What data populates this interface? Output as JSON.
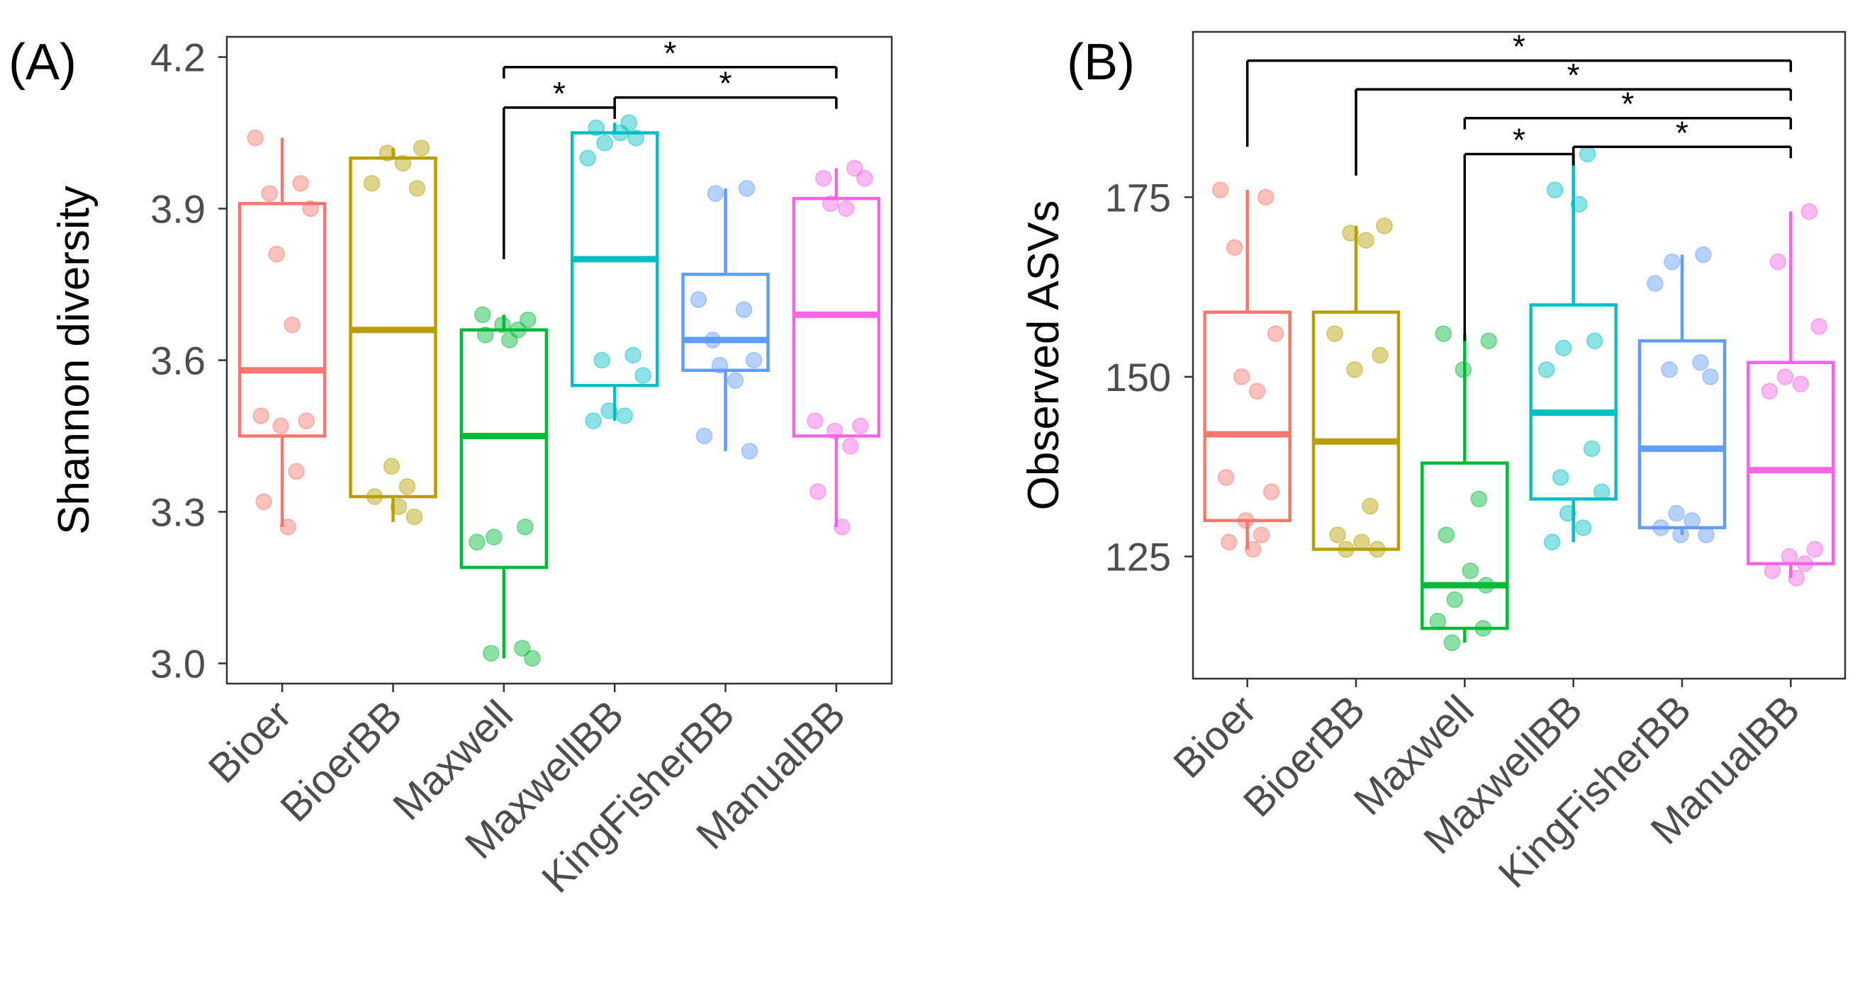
{
  "chart_data": [
    {
      "panel_label": "(A)",
      "type": "box",
      "title": "",
      "xlabel": "",
      "ylabel": "Shannon diversity",
      "ylim": [
        2.96,
        4.24
      ],
      "yticks": [
        3.0,
        3.3,
        3.6,
        3.9,
        4.2
      ],
      "ytick_labels": [
        "3.0",
        "3.3",
        "3.6",
        "3.9",
        "4.2"
      ],
      "grid": false,
      "legend": "none",
      "categories": [
        "Bioer",
        "BioerBB",
        "Maxwell",
        "MaxwellBB",
        "KingFisherBB",
        "ManualBB"
      ],
      "boxes": [
        {
          "name": "Bioer",
          "color": "#F8766D",
          "whisker_low": 3.27,
          "q1": 3.45,
          "median": 3.58,
          "q3": 3.91,
          "whisker_high": 4.04,
          "points": [
            4.04,
            3.95,
            3.93,
            3.9,
            3.81,
            3.67,
            3.49,
            3.48,
            3.47,
            3.38,
            3.32,
            3.27
          ]
        },
        {
          "name": "BioerBB",
          "color": "#B79F00",
          "whisker_low": 3.28,
          "q1": 3.33,
          "median": 3.66,
          "q3": 4.0,
          "whisker_high": 4.02,
          "points": [
            4.02,
            4.01,
            3.99,
            3.95,
            3.94,
            3.39,
            3.35,
            3.33,
            3.31,
            3.29
          ]
        },
        {
          "name": "Maxwell",
          "color": "#00BA38",
          "whisker_low": 3.01,
          "q1": 3.19,
          "median": 3.45,
          "q3": 3.66,
          "whisker_high": 3.69,
          "points": [
            3.69,
            3.68,
            3.67,
            3.66,
            3.65,
            3.64,
            3.27,
            3.25,
            3.24,
            3.03,
            3.02,
            3.01
          ]
        },
        {
          "name": "MaxwellBB",
          "color": "#00BFC4",
          "whisker_low": 3.48,
          "q1": 3.55,
          "median": 3.8,
          "q3": 4.05,
          "whisker_high": 4.07,
          "points": [
            4.07,
            4.06,
            4.05,
            4.04,
            4.03,
            4.0,
            3.61,
            3.6,
            3.57,
            3.5,
            3.49,
            3.48
          ]
        },
        {
          "name": "KingFisherBB",
          "color": "#619CFF",
          "whisker_low": 3.42,
          "q1": 3.58,
          "median": 3.64,
          "q3": 3.77,
          "whisker_high": 3.94,
          "points": [
            3.94,
            3.93,
            3.72,
            3.7,
            3.64,
            3.6,
            3.59,
            3.56,
            3.45,
            3.42
          ]
        },
        {
          "name": "ManualBB",
          "color": "#F564E3",
          "whisker_low": 3.27,
          "q1": 3.45,
          "median": 3.69,
          "q3": 3.92,
          "whisker_high": 3.98,
          "points": [
            3.98,
            3.96,
            3.96,
            3.91,
            3.9,
            3.48,
            3.47,
            3.46,
            3.43,
            3.34,
            3.27
          ]
        }
      ],
      "significance": [
        {
          "from": "Maxwell",
          "to": "ManualBB",
          "label": "*",
          "y": 4.18
        },
        {
          "from": "MaxwellBB",
          "to": "ManualBB",
          "label": "*",
          "y": 4.12
        },
        {
          "from": "Maxwell",
          "to": "MaxwellBB",
          "label": "*",
          "y": 4.1,
          "drop": 3.8
        }
      ]
    },
    {
      "panel_label": "(B)",
      "type": "box",
      "title": "",
      "xlabel": "",
      "ylabel": "Observed ASVs",
      "ylim": [
        108,
        198
      ],
      "yticks": [
        125,
        150,
        175
      ],
      "ytick_labels": [
        "125",
        "150",
        "175"
      ],
      "grid": false,
      "legend": "none",
      "categories": [
        "Bioer",
        "BioerBB",
        "Maxwell",
        "MaxwellBB",
        "KingFisherBB",
        "ManualBB"
      ],
      "boxes": [
        {
          "name": "Bioer",
          "color": "#F8766D",
          "whisker_low": 126,
          "q1": 130,
          "median": 142,
          "q3": 159,
          "whisker_high": 176,
          "points": [
            176,
            175,
            168,
            156,
            150,
            148,
            136,
            134,
            130,
            128,
            127,
            126
          ]
        },
        {
          "name": "BioerBB",
          "color": "#B79F00",
          "whisker_low": 126,
          "q1": 126,
          "median": 141,
          "q3": 159,
          "whisker_high": 171,
          "points": [
            171,
            170,
            169,
            156,
            153,
            151,
            132,
            128,
            127,
            126,
            126
          ]
        },
        {
          "name": "Maxwell",
          "color": "#00BA38",
          "whisker_low": 113,
          "q1": 115,
          "median": 121,
          "q3": 138,
          "whisker_high": 156,
          "points": [
            156,
            155,
            151,
            133,
            128,
            123,
            121,
            119,
            116,
            115,
            113
          ]
        },
        {
          "name": "MaxwellBB",
          "color": "#00BFC4",
          "whisker_low": 127,
          "q1": 133,
          "median": 145,
          "q3": 160,
          "whisker_high": 181,
          "points": [
            181,
            176,
            174,
            155,
            154,
            151,
            140,
            136,
            134,
            131,
            129,
            127
          ]
        },
        {
          "name": "KingFisherBB",
          "color": "#619CFF",
          "whisker_low": 128,
          "q1": 129,
          "median": 140,
          "q3": 155,
          "whisker_high": 167,
          "points": [
            167,
            166,
            163,
            152,
            151,
            150,
            131,
            130,
            129,
            128,
            128
          ]
        },
        {
          "name": "ManualBB",
          "color": "#F564E3",
          "whisker_low": 122,
          "q1": 124,
          "median": 137,
          "q3": 152,
          "whisker_high": 173,
          "points": [
            173,
            166,
            157,
            150,
            149,
            148,
            126,
            125,
            124,
            123,
            122
          ]
        }
      ],
      "significance": [
        {
          "from": "Bioer",
          "to": "ManualBB",
          "label": "*",
          "y": 194,
          "drop": 182
        },
        {
          "from": "BioerBB",
          "to": "ManualBB",
          "label": "*",
          "y": 190,
          "drop": 178
        },
        {
          "from": "Maxwell",
          "to": "ManualBB",
          "label": "*",
          "y": 186
        },
        {
          "from": "MaxwellBB",
          "to": "ManualBB",
          "label": "*",
          "y": 182
        },
        {
          "from": "Maxwell",
          "to": "MaxwellBB",
          "label": "*",
          "y": 181,
          "drop": 155
        }
      ]
    }
  ]
}
